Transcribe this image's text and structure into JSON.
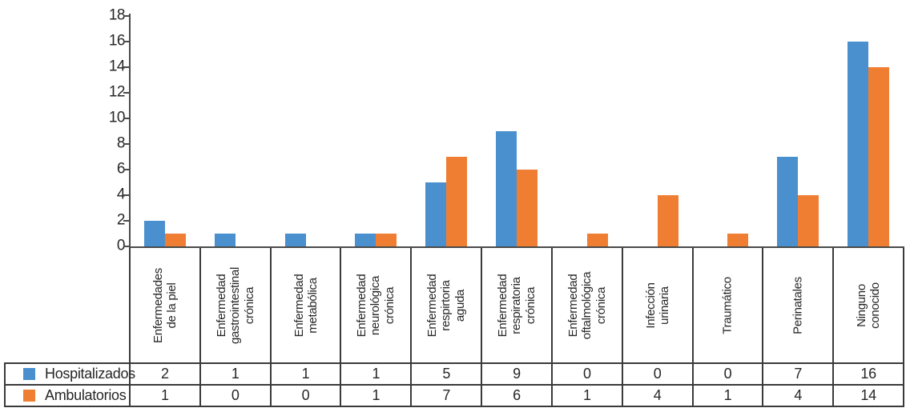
{
  "chart_data": {
    "type": "bar",
    "title": "",
    "xlabel": "",
    "ylabel": "",
    "ylim": [
      0,
      18
    ],
    "ytick_step": 2,
    "yticks": [
      0,
      2,
      4,
      6,
      8,
      10,
      12,
      14,
      16,
      18
    ],
    "grid": false,
    "legend_position": "bottom-table",
    "categories": [
      "Enfermedades\nde la piel",
      "Enfermedad\ngastrointestinal\ncrónica",
      "Enfermedad\nmetabólica",
      "Enfermedad\nneurológica\ncrónica",
      "Enfermedad\nrespirtoria\naguda",
      "Enfermedad\nrespiratoria\ncrónica",
      "Enfermedad\noftalmológica\ncrónica",
      "Infección\nurinaria",
      "Traumático",
      "Perinatales",
      "Ninguno\nconocido"
    ],
    "series": [
      {
        "name": "Hospitalizados",
        "color": "#4A90CE",
        "values": [
          2,
          1,
          1,
          1,
          5,
          9,
          0,
          0,
          0,
          7,
          16
        ]
      },
      {
        "name": "Ambulatorios",
        "color": "#EF7E33",
        "values": [
          1,
          0,
          0,
          1,
          7,
          6,
          1,
          4,
          1,
          4,
          14
        ]
      }
    ]
  }
}
